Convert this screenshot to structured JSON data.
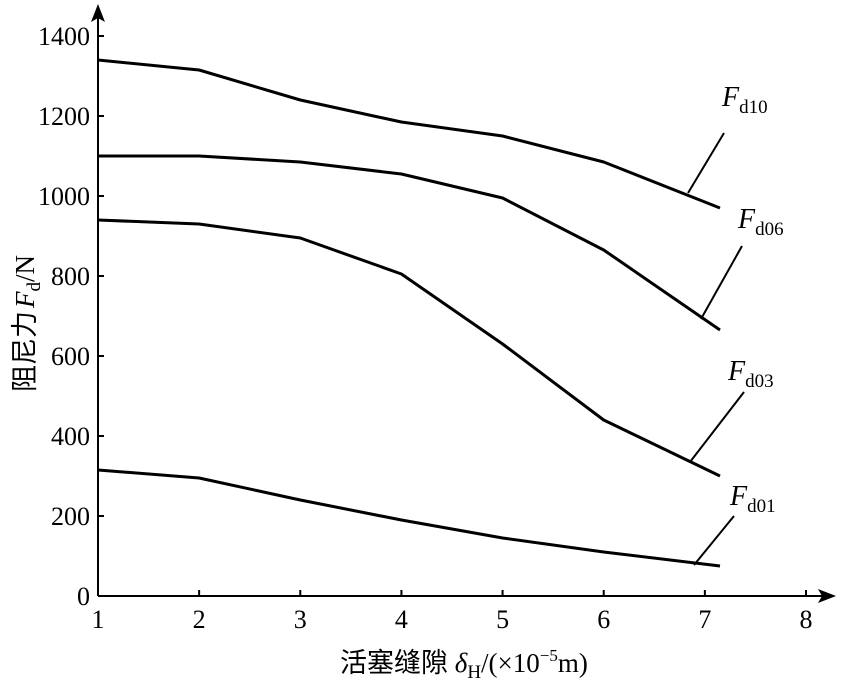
{
  "chart_data": {
    "type": "line",
    "xlabel": "活塞缝隙 δH/(×10⁻⁵m)",
    "xlabel_parts": {
      "prefix": "活塞缝隙 ",
      "symbol": "δ",
      "symbol_sub": "H",
      "suffix_open": "/(×10",
      "exponent": "−5",
      "suffix_close": "m)"
    },
    "ylabel": "阻尼力 Fd/N",
    "ylabel_parts": {
      "prefix": "阻尼力",
      "symbol": "F",
      "symbol_sub": "d",
      "suffix": "/N"
    },
    "xlim": [
      1,
      8
    ],
    "ylim": [
      0,
      1400
    ],
    "xticks": [
      "1",
      "2",
      "3",
      "4",
      "5",
      "6",
      "7",
      "8"
    ],
    "yticks": [
      "0",
      "200",
      "400",
      "600",
      "800",
      "1000",
      "1200",
      "1400"
    ],
    "grid": false,
    "series": [
      {
        "name": "Fd10",
        "symbol": "F",
        "sub": "d10",
        "x": [
          1,
          2,
          3,
          4,
          5,
          6,
          7.15
        ],
        "y": [
          1340,
          1315,
          1240,
          1185,
          1150,
          1085,
          970
        ]
      },
      {
        "name": "Fd06",
        "symbol": "F",
        "sub": "d06",
        "x": [
          1,
          2,
          3,
          4,
          5,
          6,
          7.15
        ],
        "y": [
          1100,
          1100,
          1085,
          1055,
          995,
          865,
          665
        ]
      },
      {
        "name": "Fd03",
        "symbol": "F",
        "sub": "d03",
        "x": [
          1,
          2,
          3,
          4,
          5,
          6,
          7.15
        ],
        "y": [
          940,
          930,
          895,
          805,
          630,
          440,
          300
        ]
      },
      {
        "name": "Fd01",
        "symbol": "F",
        "sub": "d01",
        "x": [
          1,
          2,
          3,
          4,
          5,
          6,
          7.15
        ],
        "y": [
          315,
          295,
          240,
          190,
          145,
          110,
          75
        ]
      }
    ]
  }
}
